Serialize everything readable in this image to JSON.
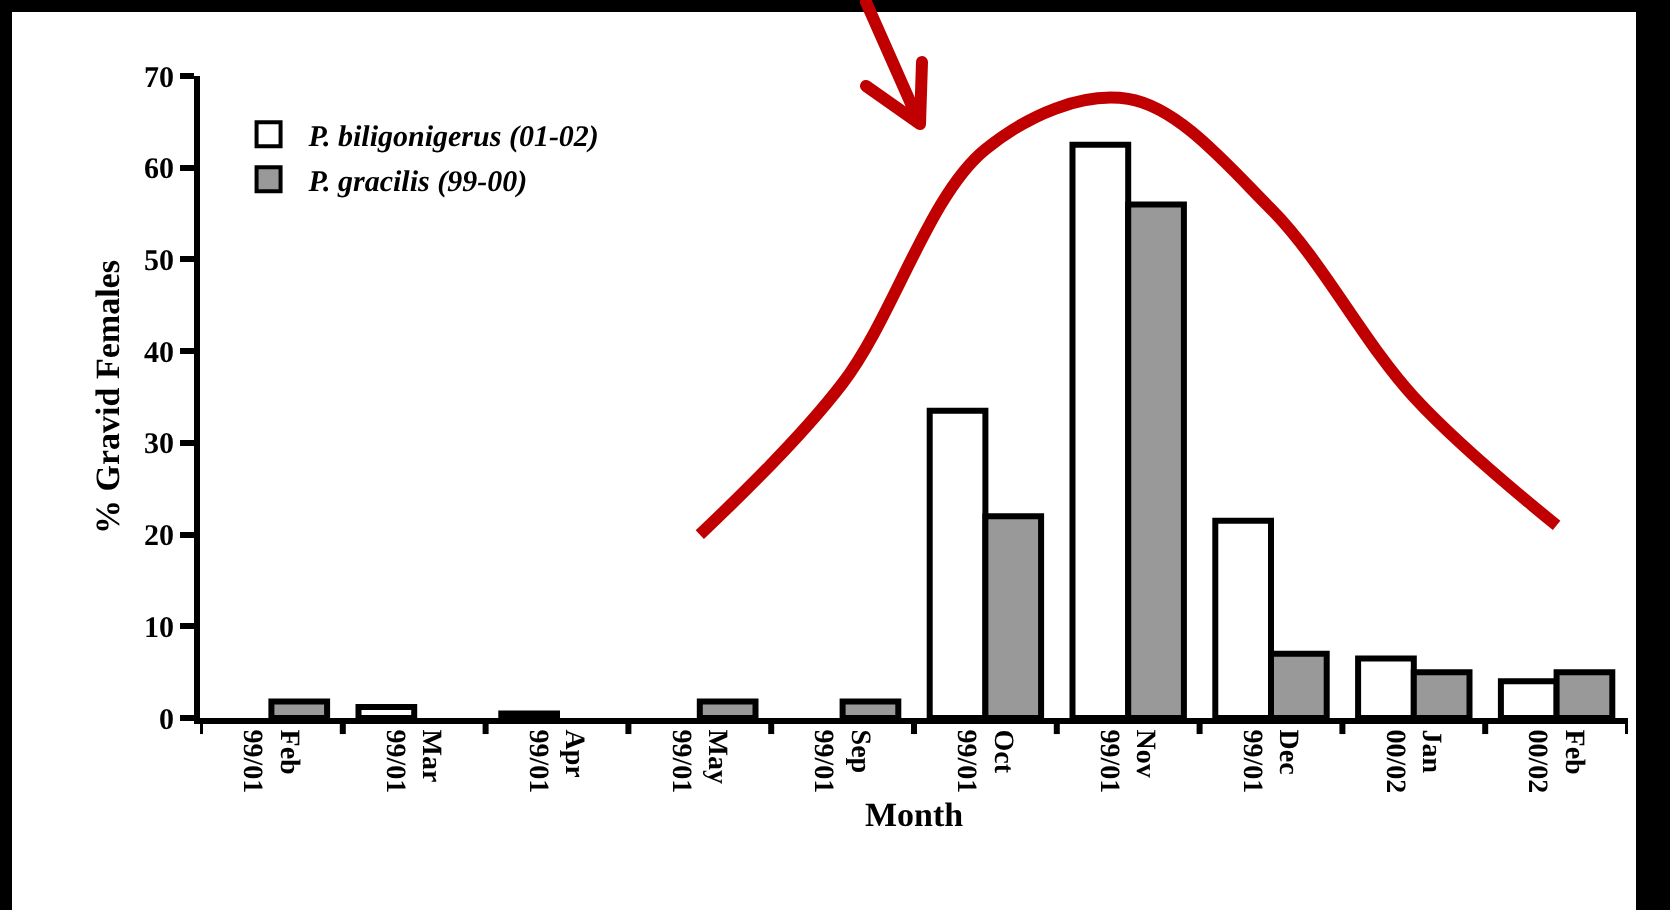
{
  "chart_data": {
    "type": "bar",
    "xlabel": "Month",
    "ylabel": "% Gravid Females",
    "categories": [
      "Feb\n99/01",
      "Mar\n99/01",
      "Apr\n99/01",
      "May\n99/01",
      "Sep\n99/01",
      "Oct\n99/01",
      "Nov\n99/01",
      "Dec\n99/01",
      "Jan\n00/02",
      "Feb\n00/02"
    ],
    "series": [
      {
        "name": "P. biligonigerus (01-02)",
        "color": "#ffffff",
        "values": [
          null,
          1.2,
          0.5,
          null,
          null,
          33.5,
          62.5,
          21.5,
          6.5,
          4
        ]
      },
      {
        "name": "P. gracilis (99-00)",
        "color": "#999999",
        "values": [
          1.8,
          null,
          null,
          1.8,
          1.8,
          22,
          56,
          7,
          5,
          5
        ]
      },
      {
        "type": "line",
        "color": "#c00000",
        "line_style": "solid",
        "marker": "none",
        "x": [
          "May\n99/01",
          "Sep\n99/01",
          "Oct\n99/01",
          "Nov\n99/01",
          "Dec\n99/01",
          "Jan\n00/02",
          "Feb\n00/02"
        ],
        "values": [
          20,
          36.5,
          62,
          67.5,
          55.5,
          35,
          21
        ]
      }
    ],
    "ylim": [
      0,
      70
    ],
    "yticks": [
      0,
      10,
      20,
      30,
      40,
      50,
      60,
      70
    ],
    "grid": false,
    "legend": "top left"
  }
}
